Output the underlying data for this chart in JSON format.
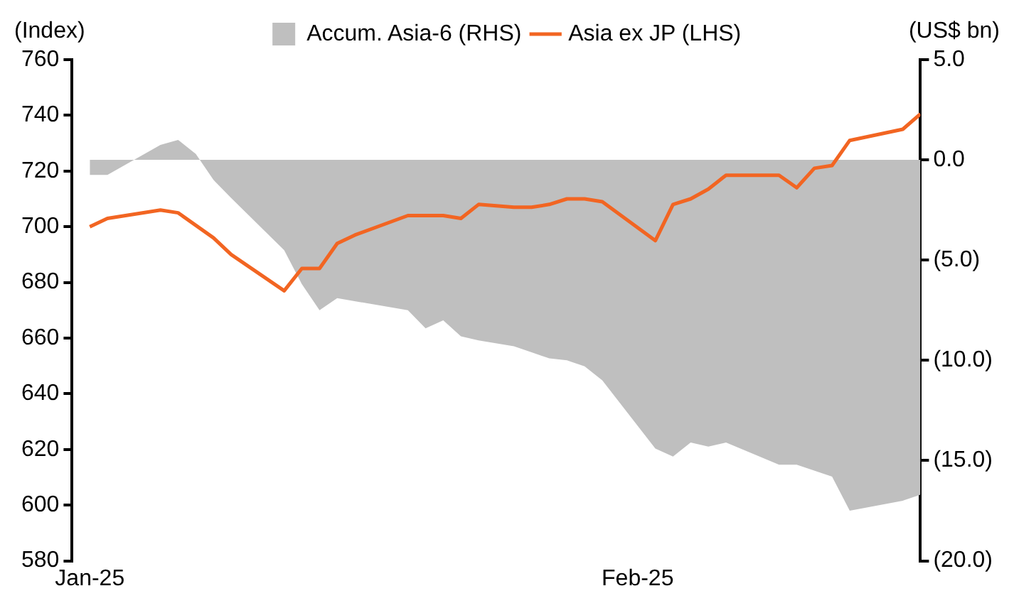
{
  "chart_data": {
    "type": "line",
    "ylabel": "(Index)",
    "y2label": "(US$ bn)",
    "xlim": [
      "2024-12-31",
      "2025-02-17"
    ],
    "xticks": [
      {
        "value": "2025-01-01",
        "label": "Jan-25"
      },
      {
        "value": "2025-02-01",
        "label": "Feb-25"
      }
    ],
    "ylim": [
      580,
      760
    ],
    "yticks": [
      580,
      600,
      620,
      640,
      660,
      680,
      700,
      720,
      740,
      760
    ],
    "y2lim": [
      -20,
      5
    ],
    "y2ticks": [
      {
        "value": -20,
        "label": "(20.0)"
      },
      {
        "value": -15,
        "label": "(15.0)"
      },
      {
        "value": -10,
        "label": "(10.0)"
      },
      {
        "value": -5,
        "label": "(5.0)"
      },
      {
        "value": 0,
        "label": "0.0"
      },
      {
        "value": 5,
        "label": "5.0"
      }
    ],
    "grid": false,
    "legend": "top",
    "series": [
      {
        "name": "Accum. Asia-6 (RHS)",
        "type": "area",
        "axis": "y2",
        "color": "#bfbfbf",
        "x": [
          "2025-01-01",
          "2025-01-02",
          "2025-01-05",
          "2025-01-06",
          "2025-01-07",
          "2025-01-08",
          "2025-01-09",
          "2025-01-12",
          "2025-01-13",
          "2025-01-14",
          "2025-01-15",
          "2025-01-19",
          "2025-01-20",
          "2025-01-21",
          "2025-01-22",
          "2025-01-23",
          "2025-01-25",
          "2025-01-26",
          "2025-01-27",
          "2025-01-28",
          "2025-01-29",
          "2025-01-30",
          "2025-02-02",
          "2025-02-03",
          "2025-02-04",
          "2025-02-05",
          "2025-02-06",
          "2025-02-09",
          "2025-02-10",
          "2025-02-12",
          "2025-02-13",
          "2025-02-16",
          "2025-02-17"
        ],
        "values": [
          -0.75,
          -0.75,
          0.75,
          1.0,
          0.3,
          -1.0,
          -1.9,
          -4.5,
          -6.2,
          -7.5,
          -6.9,
          -7.5,
          -8.4,
          -8.0,
          -8.8,
          -9.0,
          -9.3,
          -9.6,
          -9.9,
          -10.0,
          -10.3,
          -11.0,
          -14.4,
          -14.8,
          -14.1,
          -14.3,
          -14.1,
          -15.2,
          -15.2,
          -15.8,
          -17.5,
          -17.0,
          -16.7
        ]
      },
      {
        "name": "Asia ex JP (LHS)",
        "type": "line",
        "color": "#f26522",
        "x": [
          "2025-01-01",
          "2025-01-02",
          "2025-01-05",
          "2025-01-06",
          "2025-01-08",
          "2025-01-09",
          "2025-01-12",
          "2025-01-13",
          "2025-01-14",
          "2025-01-15",
          "2025-01-16",
          "2025-01-19",
          "2025-01-21",
          "2025-01-22",
          "2025-01-23",
          "2025-01-25",
          "2025-01-26",
          "2025-01-27",
          "2025-01-28",
          "2025-01-29",
          "2025-01-30",
          "2025-02-02",
          "2025-02-03",
          "2025-02-04",
          "2025-02-05",
          "2025-02-06",
          "2025-02-09",
          "2025-02-10",
          "2025-02-11",
          "2025-02-12",
          "2025-02-13",
          "2025-02-16",
          "2025-02-17"
        ],
        "values": [
          700,
          703,
          706,
          705,
          696,
          690,
          677,
          685,
          685,
          694,
          697,
          704,
          704,
          703,
          708,
          707,
          707,
          708,
          710,
          710,
          709,
          695,
          708,
          710,
          713.5,
          718.5,
          718.5,
          714,
          721,
          722,
          731,
          735,
          740.5
        ]
      }
    ]
  }
}
